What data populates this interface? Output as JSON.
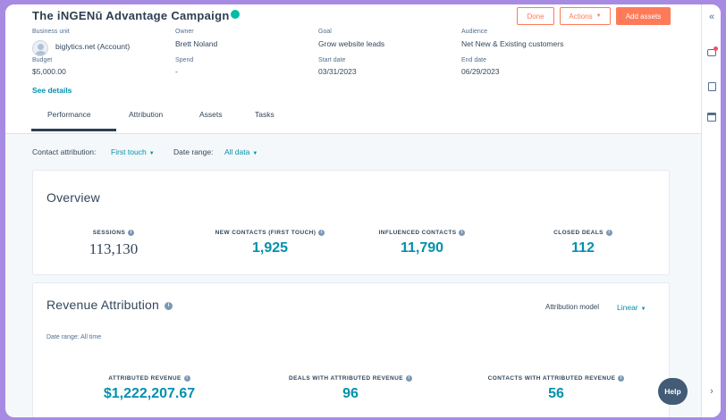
{
  "campaign": {
    "title": "The iNGENū Advantage Campaign"
  },
  "actions": {
    "done_label": "Done",
    "actions_label": "Actions",
    "add_assets_label": "Add assets"
  },
  "details": {
    "business_unit": {
      "label": "Business unit",
      "value": "biglytics.net (Account)"
    },
    "owner": {
      "label": "Owner",
      "value": "Brett Noland"
    },
    "goal": {
      "label": "Goal",
      "value": "Grow website leads"
    },
    "audience": {
      "label": "Audience",
      "value": "Net New & Existing customers"
    },
    "budget": {
      "label": "Budget",
      "value": "$5,000.00"
    },
    "spend": {
      "label": "Spend",
      "value": "-"
    },
    "start_date": {
      "label": "Start date",
      "value": "03/31/2023"
    },
    "end_date": {
      "label": "End date",
      "value": "06/29/2023"
    },
    "see_details": "See details"
  },
  "tabs": [
    {
      "label": "Performance",
      "active": true
    },
    {
      "label": "Attribution",
      "active": false
    },
    {
      "label": "Assets",
      "active": false
    },
    {
      "label": "Tasks",
      "active": false
    }
  ],
  "filters": {
    "contact_attribution": {
      "label": "Contact attribution:",
      "value": "First touch"
    },
    "date_range": {
      "label": "Date range:",
      "value": "All data"
    }
  },
  "overview": {
    "title": "Overview",
    "metrics": [
      {
        "label": "SESSIONS",
        "value": "113,130"
      },
      {
        "label": "NEW CONTACTS (FIRST TOUCH)",
        "value": "1,925"
      },
      {
        "label": "INFLUENCED CONTACTS",
        "value": "11,790"
      },
      {
        "label": "CLOSED DEALS",
        "value": "112"
      }
    ]
  },
  "revenue": {
    "title": "Revenue Attribution",
    "attribution_model": {
      "label": "Attribution model",
      "value": "Linear"
    },
    "date_range_note": "Date range: All time",
    "metrics": [
      {
        "label": "ATTRIBUTED REVENUE",
        "value": "$1,222,207.67"
      },
      {
        "label": "DEALS WITH ATTRIBUTED REVENUE",
        "value": "96"
      },
      {
        "label": "CONTACTS WITH ATTRIBUTED REVENUE",
        "value": "56"
      }
    ]
  },
  "help": {
    "label": "Help"
  },
  "icons": {
    "info": "info-icon",
    "collapse": "double-chevron-left-icon",
    "chat": "chat-icon",
    "document": "document-icon",
    "calendar": "calendar-icon",
    "expand": "chevron-right-icon"
  },
  "colors": {
    "accent": "#0091ae",
    "primary_button": "#ff7a59",
    "status": "#00bda5",
    "frame": "#a78be3"
  }
}
